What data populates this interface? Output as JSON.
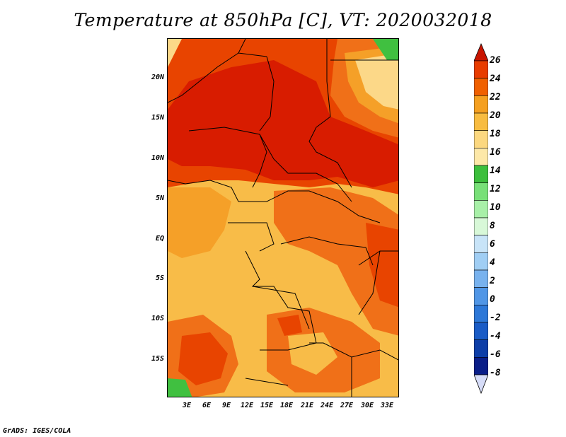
{
  "title": "Temperature at 850hPa [C], VT: 2020032018",
  "credit": "GrADS: IGES/COLA",
  "lat_labels": [
    "20N",
    "15N",
    "10N",
    "5N",
    "EQ",
    "5S",
    "10S",
    "15S"
  ],
  "lon_labels": [
    "3E",
    "6E",
    "9E",
    "12E",
    "15E",
    "18E",
    "21E",
    "24E",
    "27E",
    "30E",
    "33E"
  ],
  "colorbar": {
    "labels": [
      "26",
      "24",
      "22",
      "20",
      "18",
      "16",
      "14",
      "12",
      "10",
      "8",
      "6",
      "4",
      "2",
      "0",
      "-2",
      "-4",
      "-6",
      "-8"
    ],
    "colors": [
      "#d91c00",
      "#e83c00",
      "#f06000",
      "#f5a020",
      "#f8bc40",
      "#fcd880",
      "#fde8a8",
      "#3cbf3c",
      "#78e078",
      "#a8f0a8",
      "#d8f8d8",
      "#c8e4f8",
      "#a0cef4",
      "#78b2ee",
      "#5096e6",
      "#2d78d8",
      "#1a5cc6",
      "#0d3ea8",
      "#0a1e88"
    ],
    "lower_arrow": "#d6dcf8",
    "upper_arrow": "#c81400"
  },
  "map_colors": {
    "very_hot": "#d81c00",
    "hot": "#e84400",
    "warm": "#f07018",
    "mild": "#f5a028",
    "light": "#f8bc48",
    "pale": "#fcd888",
    "cool": "#fde8b0",
    "green": "#40c040"
  }
}
